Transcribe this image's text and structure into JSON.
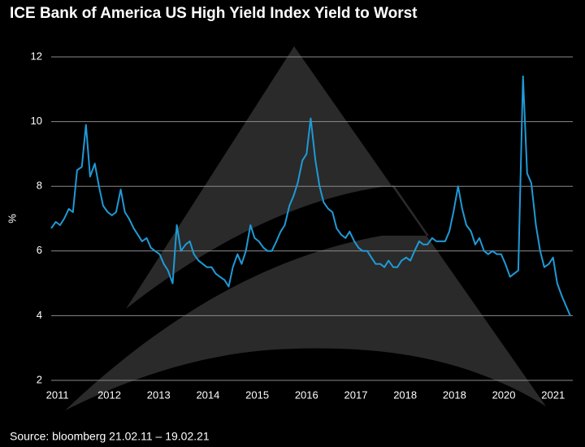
{
  "chart_data": {
    "type": "line",
    "title": "ICE Bank of America US High Yield Index Yield to Worst",
    "y_label": "%",
    "source": "Source: bloomberg 21.02.11 – 19.02.21",
    "color": "#1f9ad6",
    "grid": true,
    "xlim": [
      2011.08,
      2021.13
    ],
    "ylim": [
      2,
      12
    ],
    "yticks": [
      2,
      4,
      6,
      8,
      10,
      12
    ],
    "xticks": [
      {
        "value": 2011.2,
        "label": "2011"
      },
      {
        "value": 2012.2,
        "label": "2012"
      },
      {
        "value": 2013.15,
        "label": "2013"
      },
      {
        "value": 2014.1,
        "label": "2014"
      },
      {
        "value": 2015.05,
        "label": "2015"
      },
      {
        "value": 2016.0,
        "label": "2016"
      },
      {
        "value": 2016.95,
        "label": "2017"
      },
      {
        "value": 2017.9,
        "label": "2018"
      },
      {
        "value": 2018.85,
        "label": "2018"
      },
      {
        "value": 2019.8,
        "label": "2020"
      },
      {
        "value": 2020.75,
        "label": "2021"
      }
    ],
    "x": [
      2011.08,
      2011.17,
      2011.25,
      2011.33,
      2011.42,
      2011.5,
      2011.58,
      2011.67,
      2011.75,
      2011.83,
      2011.92,
      2012.0,
      2012.08,
      2012.17,
      2012.25,
      2012.33,
      2012.42,
      2012.5,
      2012.58,
      2012.67,
      2012.75,
      2012.83,
      2012.92,
      2013.0,
      2013.08,
      2013.17,
      2013.25,
      2013.33,
      2013.42,
      2013.5,
      2013.58,
      2013.67,
      2013.75,
      2013.83,
      2013.92,
      2014.0,
      2014.08,
      2014.17,
      2014.25,
      2014.33,
      2014.42,
      2014.5,
      2014.58,
      2014.67,
      2014.75,
      2014.83,
      2014.92,
      2015.0,
      2015.08,
      2015.17,
      2015.25,
      2015.33,
      2015.42,
      2015.5,
      2015.58,
      2015.67,
      2015.75,
      2015.83,
      2015.92,
      2016.0,
      2016.08,
      2016.17,
      2016.25,
      2016.33,
      2016.42,
      2016.5,
      2016.58,
      2016.67,
      2016.75,
      2016.83,
      2016.92,
      2017.0,
      2017.08,
      2017.17,
      2017.25,
      2017.33,
      2017.42,
      2017.5,
      2017.58,
      2017.67,
      2017.75,
      2017.83,
      2017.92,
      2018.0,
      2018.08,
      2018.17,
      2018.25,
      2018.33,
      2018.42,
      2018.5,
      2018.58,
      2018.67,
      2018.75,
      2018.83,
      2018.92,
      2019.0,
      2019.08,
      2019.17,
      2019.25,
      2019.33,
      2019.42,
      2019.5,
      2019.58,
      2019.67,
      2019.75,
      2019.83,
      2019.92,
      2020.0,
      2020.08,
      2020.17,
      2020.25,
      2020.33,
      2020.42,
      2020.5,
      2020.58,
      2020.67,
      2020.75,
      2020.83,
      2020.92,
      2021.0,
      2021.08
    ],
    "values": [
      6.7,
      6.9,
      6.8,
      7.0,
      7.3,
      7.2,
      8.5,
      8.6,
      9.9,
      8.3,
      8.7,
      8.0,
      7.4,
      7.2,
      7.1,
      7.2,
      7.9,
      7.2,
      7.0,
      6.7,
      6.5,
      6.3,
      6.4,
      6.1,
      6.0,
      5.9,
      5.6,
      5.4,
      5.0,
      6.8,
      6.0,
      6.2,
      6.3,
      5.9,
      5.7,
      5.6,
      5.5,
      5.5,
      5.3,
      5.2,
      5.1,
      4.9,
      5.5,
      5.9,
      5.6,
      6.0,
      6.8,
      6.4,
      6.3,
      6.1,
      6.0,
      6.0,
      6.3,
      6.6,
      6.8,
      7.4,
      7.7,
      8.1,
      8.8,
      9.0,
      10.1,
      8.8,
      8.0,
      7.5,
      7.3,
      7.2,
      6.7,
      6.5,
      6.4,
      6.6,
      6.3,
      6.1,
      6.0,
      6.0,
      5.8,
      5.6,
      5.6,
      5.5,
      5.7,
      5.5,
      5.5,
      5.7,
      5.8,
      5.7,
      6.0,
      6.3,
      6.2,
      6.2,
      6.4,
      6.3,
      6.3,
      6.3,
      6.6,
      7.2,
      8.0,
      7.3,
      6.8,
      6.6,
      6.2,
      6.4,
      6.0,
      5.9,
      6.0,
      5.9,
      5.9,
      5.6,
      5.2,
      5.3,
      5.4,
      11.4,
      8.4,
      8.1,
      6.8,
      6.0,
      5.5,
      5.6,
      5.8,
      5.0,
      4.6,
      4.3,
      4.0
    ]
  }
}
